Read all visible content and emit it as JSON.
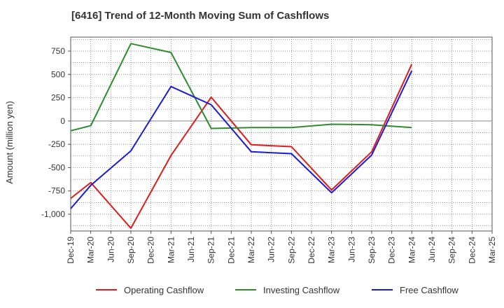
{
  "chart_data": {
    "type": "line",
    "title": "[6416]  Trend of 12-Month Moving Sum of Cashflows",
    "ylabel": "Amount (million yen)",
    "xlabel": "",
    "ylim": [
      -1180,
      900
    ],
    "yticks": [
      750,
      500,
      250,
      0,
      -250,
      -500,
      -750,
      -1000
    ],
    "ytick_labels": [
      "750",
      "500",
      "250",
      "0",
      "-250",
      "-500",
      "-750",
      "-1,000"
    ],
    "categories": [
      "Dec-19",
      "Mar-20",
      "Jun-20",
      "Sep-20",
      "Dec-20",
      "Mar-21",
      "Jun-21",
      "Sep-21",
      "Dec-21",
      "Mar-22",
      "Jun-22",
      "Sep-22",
      "Dec-22",
      "Mar-23",
      "Jun-23",
      "Sep-23",
      "Dec-23",
      "Mar-24",
      "Jun-24",
      "Sep-24",
      "Dec-24",
      "Mar-25"
    ],
    "grid": true,
    "legend_position": "bottom",
    "series": [
      {
        "name": "Operating Cashflow",
        "color": "#e31a1c",
        "values": [
          -830,
          -660,
          null,
          -1150,
          null,
          -370,
          null,
          255,
          null,
          -255,
          null,
          -275,
          null,
          -740,
          null,
          -330,
          null,
          610,
          null,
          null,
          null,
          null
        ]
      },
      {
        "name": "Investing Cashflow",
        "color": "#2e8b2e",
        "values": [
          -105,
          -50,
          null,
          830,
          null,
          735,
          null,
          -80,
          null,
          -70,
          null,
          -70,
          null,
          -35,
          null,
          -40,
          null,
          -70,
          null,
          null,
          null,
          null
        ]
      },
      {
        "name": "Free Cashflow",
        "color": "#1a1adb",
        "values": [
          -940,
          -690,
          null,
          -320,
          null,
          370,
          null,
          175,
          null,
          -330,
          null,
          -350,
          null,
          -770,
          null,
          -365,
          null,
          540,
          null,
          null,
          null,
          null
        ]
      }
    ]
  }
}
